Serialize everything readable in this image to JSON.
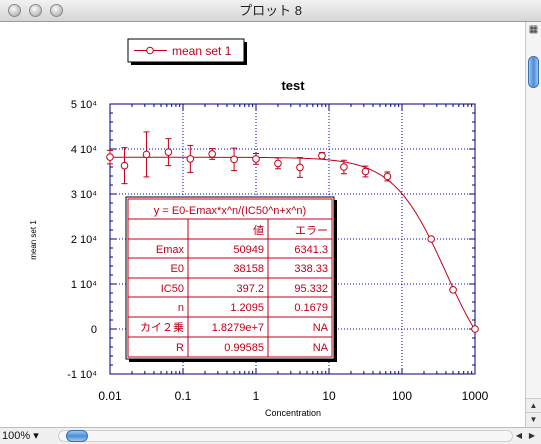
{
  "window": {
    "title": "プロット 8"
  },
  "plot": {
    "legend_label": "mean set 1",
    "title": "test",
    "xlabel": "Concentration",
    "ylabel": "mean set 1",
    "x_ticks": [
      "0.01",
      "0.1",
      "1",
      "10",
      "100",
      "1000"
    ],
    "y_ticks": [
      "5 10⁴",
      "4 10⁴",
      "3 10⁴",
      "2 10⁴",
      "1 10⁴",
      "0",
      "-1 10⁴"
    ],
    "colors": {
      "series": "#c0001a",
      "grid": "#0000cc",
      "axes": "#00007a"
    }
  },
  "fit_table": {
    "equation": "y = E0-Emax*x^n/(IC50^n+x^n)",
    "col_value": "値",
    "col_error": "エラー",
    "rows": [
      {
        "name": "Emax",
        "value": "50949",
        "error": "6341.3"
      },
      {
        "name": "E0",
        "value": "38158",
        "error": "338.33"
      },
      {
        "name": "IC50",
        "value": "397.2",
        "error": "95.332"
      },
      {
        "name": "n",
        "value": "1.2095",
        "error": "0.1679"
      },
      {
        "name": "カイ２乗",
        "value": "1.8279e+7",
        "error": "NA"
      },
      {
        "name": "R",
        "value": "0.99585",
        "error": "NA"
      }
    ]
  },
  "chart_data": {
    "type": "scatter",
    "x_scale": "log",
    "xlim": [
      0.01,
      1000
    ],
    "ylim": [
      -10000,
      50000
    ],
    "grid": true,
    "title": "test",
    "xlabel": "Concentration",
    "ylabel": "mean set 1",
    "series": [
      {
        "name": "mean set 1",
        "x": [
          0.01,
          0.0158,
          0.0316,
          0.0631,
          0.126,
          0.251,
          0.501,
          1,
          2,
          4,
          8,
          16,
          31.6,
          63.1,
          251,
          501,
          1000
        ],
        "y": [
          38200,
          36300,
          38800,
          39300,
          37800,
          38900,
          37700,
          37800,
          36800,
          35900,
          38500,
          36000,
          35000,
          33900,
          20000,
          8700,
          0
        ],
        "err": [
          1500,
          4000,
          5000,
          3000,
          3000,
          1200,
          2500,
          1200,
          1200,
          2200,
          700,
          1500,
          1200,
          1000,
          0,
          0,
          0
        ]
      }
    ],
    "fit": {
      "E0": 38158,
      "Emax": 50949,
      "IC50": 397.2,
      "n": 1.2095
    }
  },
  "status": {
    "zoom": "100%"
  }
}
